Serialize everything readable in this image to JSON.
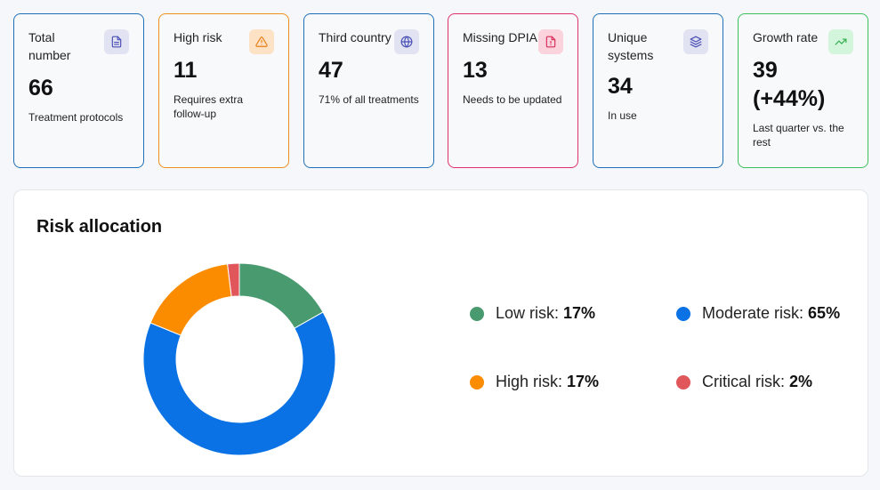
{
  "cards": [
    {
      "title": "Total number",
      "value": "66",
      "sub": "Treatment protocols",
      "icon": "document-icon",
      "border": "#1e6fb8",
      "icon_bg": "#e1e3f3",
      "icon_color": "#4a4fb5"
    },
    {
      "title": "High risk",
      "value": "11",
      "sub": "Requires extra follow-up",
      "icon": "warning-icon",
      "border": "#f0901c",
      "icon_bg": "#fde2c6",
      "icon_color": "#e67d10"
    },
    {
      "title": "Third country",
      "value": "47",
      "sub": "71% of all treatments",
      "icon": "globe-icon",
      "border": "#1e6fb8",
      "icon_bg": "#e1e3f3",
      "icon_color": "#4a4fb5"
    },
    {
      "title": "Missing DPIA",
      "value": "13",
      "sub": "Needs to be updated",
      "icon": "file-alert-icon",
      "border": "#e0306a",
      "icon_bg": "#fbd3dc",
      "icon_color": "#d92c5a"
    },
    {
      "title": "Unique systems",
      "value": "34",
      "sub": "In use",
      "icon": "layers-icon",
      "border": "#1e6fb8",
      "icon_bg": "#e1e3f3",
      "icon_color": "#4a4fb5"
    },
    {
      "title": "Growth rate",
      "value": "39 (+44%)",
      "sub": "Last quarter vs. the rest",
      "icon": "trending-up-icon",
      "border": "#3cc05c",
      "icon_bg": "#d3f5dc",
      "icon_color": "#2fae4f"
    }
  ],
  "risk": {
    "title": "Risk allocation",
    "items": [
      {
        "label": "Low risk:",
        "pct": "17%",
        "color": "#4a9a6f"
      },
      {
        "label": "Moderate risk:",
        "pct": "65%",
        "color": "#0a72e4"
      },
      {
        "label": "High risk:",
        "pct": "17%",
        "color": "#fb8c00"
      },
      {
        "label": "Critical risk:",
        "pct": "2%",
        "color": "#e0565b"
      }
    ]
  },
  "chart_data": {
    "type": "pie",
    "categories": [
      "Low risk",
      "Moderate risk",
      "High risk",
      "Critical risk"
    ],
    "values": [
      17,
      65,
      17,
      2
    ],
    "title": "Risk allocation",
    "colors": [
      "#4a9a6f",
      "#0a72e4",
      "#fb8c00",
      "#e0565b"
    ]
  }
}
